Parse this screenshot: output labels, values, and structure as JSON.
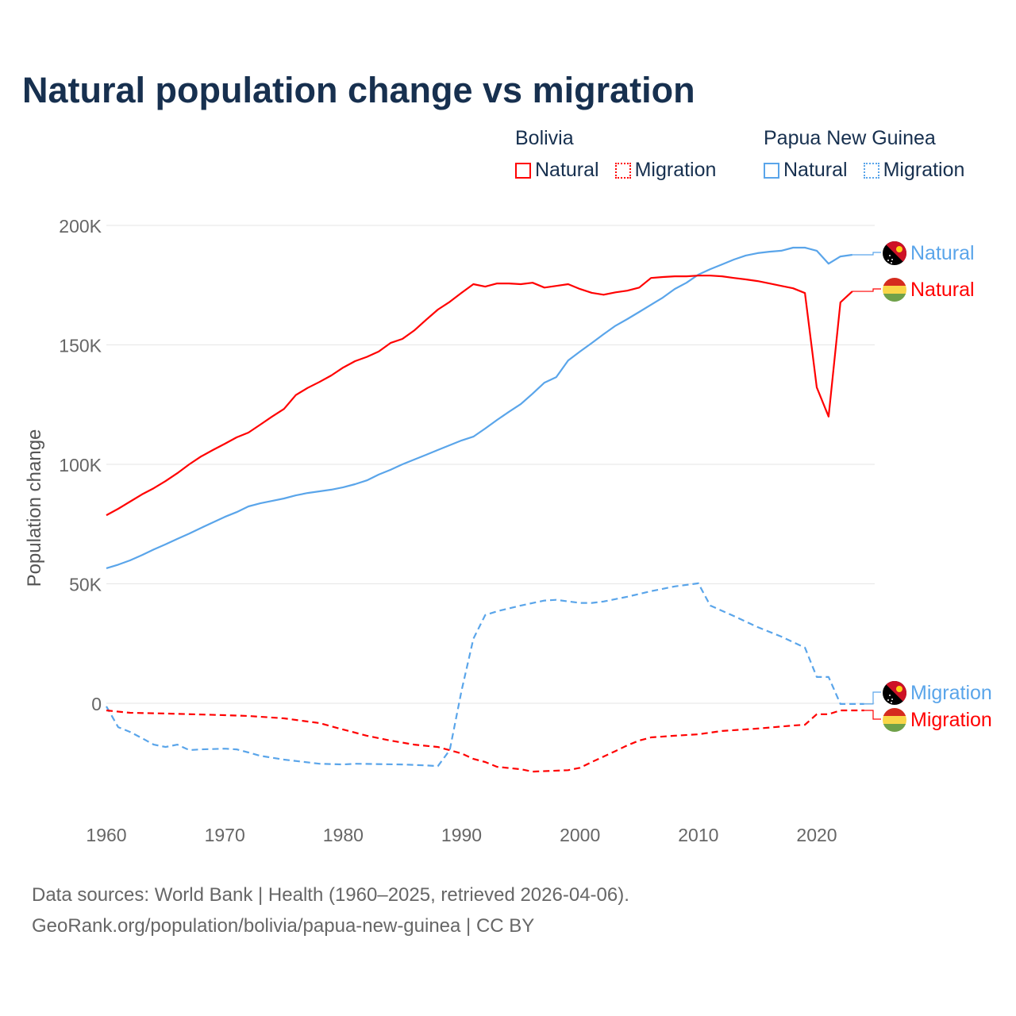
{
  "title": "Natural population change vs migration",
  "legend": {
    "groups": [
      {
        "name": "Bolivia",
        "items": [
          {
            "label": "Natural",
            "style": "solid",
            "color": "#ff0000"
          },
          {
            "label": "Migration",
            "style": "dotted",
            "color": "#ff0000"
          }
        ]
      },
      {
        "name": "Papua New Guinea",
        "items": [
          {
            "label": "Natural",
            "style": "solid",
            "color": "#5aa5ea"
          },
          {
            "label": "Migration",
            "style": "dotted",
            "color": "#5aa5ea"
          }
        ]
      }
    ]
  },
  "footer": {
    "line1": "Data sources: World Bank | Health (1960–2025, retrieved 2026-04-06).",
    "line2": "GeoRank.org/population/bolivia/papua-new-guinea | CC BY"
  },
  "chart_data": {
    "type": "line",
    "title": "Natural population change vs migration",
    "xlabel": "",
    "ylabel": "Population change",
    "xlim": [
      1960,
      2025
    ],
    "ylim": [
      -40000,
      200000
    ],
    "x_ticks": [
      1960,
      1970,
      1980,
      1990,
      2000,
      2010,
      2020
    ],
    "x_tick_labels": [
      "1960",
      "1970",
      "1980",
      "1990",
      "2000",
      "2010",
      "2020"
    ],
    "y_ticks": [
      0,
      50000,
      100000,
      150000,
      200000
    ],
    "y_tick_labels": [
      "0",
      "50K",
      "100K",
      "150K",
      "200K"
    ],
    "grid": "horizontal",
    "legend_placement": "top-right",
    "series": [
      {
        "name": "Papua New Guinea Natural",
        "end_label": "Natural",
        "country": "png",
        "color": "#5aa5ea",
        "dash": "solid",
        "points": [
          [
            1960,
            56500
          ],
          [
            1961,
            58000
          ],
          [
            1962,
            59800
          ],
          [
            1963,
            62000
          ],
          [
            1964,
            64400
          ],
          [
            1965,
            66500
          ],
          [
            1966,
            68800
          ],
          [
            1967,
            71000
          ],
          [
            1968,
            73400
          ],
          [
            1969,
            75700
          ],
          [
            1970,
            78000
          ],
          [
            1971,
            80000
          ],
          [
            1972,
            82400
          ],
          [
            1973,
            83700
          ],
          [
            1974,
            84700
          ],
          [
            1975,
            85700
          ],
          [
            1976,
            87000
          ],
          [
            1977,
            88000
          ],
          [
            1978,
            88700
          ],
          [
            1979,
            89400
          ],
          [
            1980,
            90400
          ],
          [
            1981,
            91700
          ],
          [
            1982,
            93300
          ],
          [
            1983,
            95700
          ],
          [
            1984,
            97700
          ],
          [
            1985,
            100000
          ],
          [
            1986,
            102000
          ],
          [
            1987,
            104000
          ],
          [
            1988,
            106000
          ],
          [
            1989,
            108000
          ],
          [
            1990,
            110000
          ],
          [
            1991,
            111600
          ],
          [
            1992,
            115000
          ],
          [
            1993,
            118600
          ],
          [
            1994,
            122000
          ],
          [
            1995,
            125200
          ],
          [
            1996,
            129600
          ],
          [
            1997,
            134200
          ],
          [
            1998,
            136500
          ],
          [
            1999,
            143500
          ],
          [
            2000,
            147200
          ],
          [
            2001,
            150800
          ],
          [
            2002,
            154500
          ],
          [
            2003,
            158000
          ],
          [
            2004,
            160800
          ],
          [
            2005,
            163800
          ],
          [
            2006,
            166800
          ],
          [
            2007,
            169800
          ],
          [
            2008,
            173400
          ],
          [
            2009,
            176000
          ],
          [
            2010,
            179400
          ],
          [
            2011,
            181700
          ],
          [
            2012,
            183700
          ],
          [
            2013,
            185700
          ],
          [
            2014,
            187400
          ],
          [
            2015,
            188400
          ],
          [
            2016,
            189000
          ],
          [
            2017,
            189400
          ],
          [
            2018,
            190700
          ],
          [
            2019,
            190700
          ],
          [
            2020,
            189400
          ],
          [
            2021,
            184000
          ],
          [
            2022,
            187000
          ],
          [
            2023,
            187700
          ]
        ]
      },
      {
        "name": "Bolivia Natural",
        "end_label": "Natural",
        "country": "bolivia",
        "color": "#ff0000",
        "dash": "solid",
        "points": [
          [
            1960,
            78700
          ],
          [
            1961,
            81400
          ],
          [
            1962,
            84400
          ],
          [
            1963,
            87400
          ],
          [
            1964,
            90000
          ],
          [
            1965,
            93000
          ],
          [
            1966,
            96300
          ],
          [
            1967,
            100000
          ],
          [
            1968,
            103300
          ],
          [
            1969,
            106000
          ],
          [
            1970,
            108600
          ],
          [
            1971,
            111300
          ],
          [
            1972,
            113300
          ],
          [
            1973,
            116600
          ],
          [
            1974,
            120000
          ],
          [
            1975,
            123200
          ],
          [
            1976,
            129000
          ],
          [
            1977,
            132000
          ],
          [
            1978,
            134500
          ],
          [
            1979,
            137200
          ],
          [
            1980,
            140500
          ],
          [
            1981,
            143200
          ],
          [
            1982,
            145000
          ],
          [
            1983,
            147200
          ],
          [
            1984,
            150800
          ],
          [
            1985,
            152500
          ],
          [
            1986,
            156000
          ],
          [
            1987,
            160500
          ],
          [
            1988,
            164800
          ],
          [
            1989,
            168000
          ],
          [
            1990,
            171800
          ],
          [
            1991,
            175400
          ],
          [
            1992,
            174400
          ],
          [
            1993,
            175700
          ],
          [
            1994,
            175700
          ],
          [
            1995,
            175400
          ],
          [
            1996,
            176000
          ],
          [
            1997,
            174000
          ],
          [
            1998,
            174700
          ],
          [
            1999,
            175400
          ],
          [
            2000,
            173400
          ],
          [
            2001,
            171800
          ],
          [
            2002,
            171000
          ],
          [
            2003,
            172000
          ],
          [
            2004,
            172700
          ],
          [
            2005,
            174000
          ],
          [
            2006,
            178000
          ],
          [
            2007,
            178400
          ],
          [
            2008,
            178700
          ],
          [
            2009,
            178700
          ],
          [
            2010,
            179000
          ],
          [
            2011,
            179000
          ],
          [
            2012,
            178700
          ],
          [
            2013,
            178000
          ],
          [
            2014,
            177400
          ],
          [
            2015,
            176700
          ],
          [
            2016,
            175700
          ],
          [
            2017,
            174700
          ],
          [
            2018,
            173700
          ],
          [
            2019,
            171700
          ],
          [
            2020,
            132200
          ],
          [
            2021,
            120000
          ],
          [
            2022,
            167800
          ],
          [
            2023,
            172400
          ]
        ]
      },
      {
        "name": "Papua New Guinea Migration",
        "end_label": "Migration",
        "country": "png",
        "color": "#5aa5ea",
        "dash": "dashed",
        "points": [
          [
            1960,
            -1300
          ],
          [
            1961,
            -10000
          ],
          [
            1962,
            -12000
          ],
          [
            1963,
            -14600
          ],
          [
            1964,
            -17300
          ],
          [
            1965,
            -18300
          ],
          [
            1966,
            -17300
          ],
          [
            1967,
            -19600
          ],
          [
            1968,
            -19300
          ],
          [
            1970,
            -19000
          ],
          [
            1971,
            -19300
          ],
          [
            1972,
            -20600
          ],
          [
            1973,
            -22000
          ],
          [
            1975,
            -23600
          ],
          [
            1978,
            -25300
          ],
          [
            1980,
            -25600
          ],
          [
            1981,
            -25300
          ],
          [
            1985,
            -25600
          ],
          [
            1987,
            -26000
          ],
          [
            1988,
            -26300
          ],
          [
            1989,
            -19600
          ],
          [
            1990,
            5300
          ],
          [
            1991,
            27000
          ],
          [
            1992,
            36900
          ],
          [
            1993,
            38500
          ],
          [
            1995,
            40900
          ],
          [
            1997,
            43000
          ],
          [
            1998,
            43300
          ],
          [
            2000,
            42000
          ],
          [
            2001,
            42000
          ],
          [
            2002,
            42600
          ],
          [
            2004,
            44600
          ],
          [
            2006,
            46900
          ],
          [
            2008,
            48900
          ],
          [
            2010,
            50200
          ],
          [
            2011,
            40900
          ],
          [
            2013,
            36500
          ],
          [
            2015,
            31900
          ],
          [
            2017,
            27900
          ],
          [
            2019,
            23300
          ],
          [
            2020,
            11000
          ],
          [
            2021,
            11000
          ],
          [
            2022,
            -300
          ],
          [
            2023,
            -300
          ],
          [
            2024,
            -300
          ]
        ]
      },
      {
        "name": "Bolivia Migration",
        "end_label": "Migration",
        "country": "bolivia",
        "color": "#ff0000",
        "dash": "dashed",
        "points": [
          [
            1960,
            -3000
          ],
          [
            1962,
            -4000
          ],
          [
            1965,
            -4300
          ],
          [
            1970,
            -5000
          ],
          [
            1972,
            -5300
          ],
          [
            1975,
            -6300
          ],
          [
            1978,
            -8300
          ],
          [
            1980,
            -11000
          ],
          [
            1982,
            -13600
          ],
          [
            1984,
            -15600
          ],
          [
            1986,
            -17300
          ],
          [
            1988,
            -18300
          ],
          [
            1990,
            -21000
          ],
          [
            1991,
            -23300
          ],
          [
            1992,
            -24600
          ],
          [
            1993,
            -26600
          ],
          [
            1995,
            -27600
          ],
          [
            1996,
            -28600
          ],
          [
            1999,
            -28000
          ],
          [
            2000,
            -27000
          ],
          [
            2001,
            -24600
          ],
          [
            2002,
            -22300
          ],
          [
            2003,
            -20000
          ],
          [
            2004,
            -17600
          ],
          [
            2005,
            -15600
          ],
          [
            2006,
            -14300
          ],
          [
            2008,
            -13600
          ],
          [
            2010,
            -13000
          ],
          [
            2012,
            -11600
          ],
          [
            2015,
            -10600
          ],
          [
            2018,
            -9300
          ],
          [
            2019,
            -9000
          ],
          [
            2020,
            -4600
          ],
          [
            2021,
            -4600
          ],
          [
            2022,
            -3000
          ],
          [
            2023,
            -3000
          ],
          [
            2024,
            -3000
          ]
        ]
      }
    ]
  }
}
